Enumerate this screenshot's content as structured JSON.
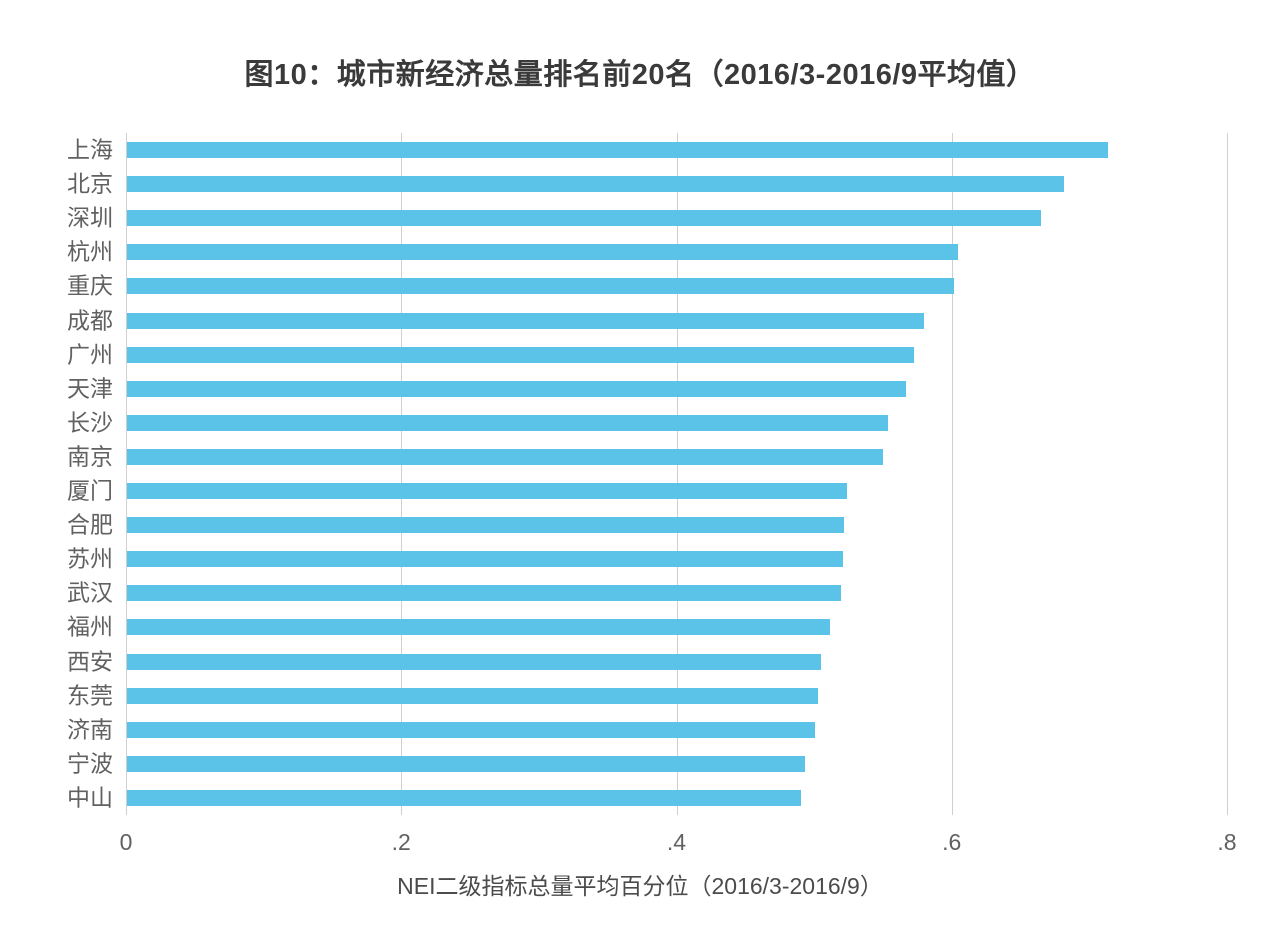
{
  "chart_data": {
    "type": "bar",
    "orientation": "horizontal",
    "title": "图10：城市新经济总量排名前20名（2016/3-2016/9平均值）",
    "xlabel": "NEI二级指标总量平均百分位（2016/3-2016/9）",
    "ylabel": "",
    "categories": [
      "上海",
      "北京",
      "深圳",
      "杭州",
      "重庆",
      "成都",
      "广州",
      "天津",
      "长沙",
      "南京",
      "厦门",
      "合肥",
      "苏州",
      "武汉",
      "福州",
      "西安",
      "东莞",
      "济南",
      "宁波",
      "中山"
    ],
    "values": [
      0.713,
      0.681,
      0.664,
      0.604,
      0.601,
      0.579,
      0.572,
      0.566,
      0.553,
      0.549,
      0.523,
      0.521,
      0.52,
      0.519,
      0.511,
      0.504,
      0.502,
      0.5,
      0.493,
      0.49
    ],
    "xlim": [
      0,
      0.8
    ],
    "x_ticks": {
      "values": [
        0,
        0.2,
        0.4,
        0.6,
        0.8
      ],
      "labels": [
        "0",
        ".2",
        ".4",
        ".6",
        ".8"
      ]
    },
    "grid": "vertical-gridlines-on",
    "legend": "none",
    "colors": {
      "bar": "#5BC2E8",
      "gridline": "#CFCFCF",
      "tick_text": "#616161",
      "category_text": "#616161",
      "title_text": "#3A3A3A",
      "xlabel_text": "#4B4B4B",
      "background": "#FFFFFF"
    }
  }
}
